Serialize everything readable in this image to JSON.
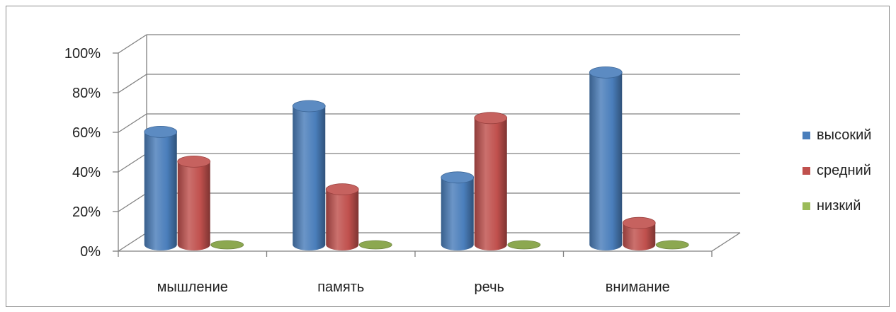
{
  "chart_data": {
    "type": "bar",
    "style": "3d-cylinder",
    "categories": [
      "мышление",
      "память",
      "речь",
      "внимание"
    ],
    "series": [
      {
        "name": "высокий",
        "color": "#4a7ebb",
        "values": [
          57,
          70,
          34,
          87
        ]
      },
      {
        "name": "средний",
        "color": "#c0504d",
        "values": [
          42,
          28,
          64,
          11
        ]
      },
      {
        "name": "низкий",
        "color": "#9bbb59",
        "values": [
          0,
          0,
          0,
          0
        ]
      }
    ],
    "ylim": [
      0,
      100
    ],
    "yticks": [
      "0%",
      "20%",
      "40%",
      "60%",
      "80%",
      "100%"
    ],
    "grid": true,
    "legend": "right"
  }
}
